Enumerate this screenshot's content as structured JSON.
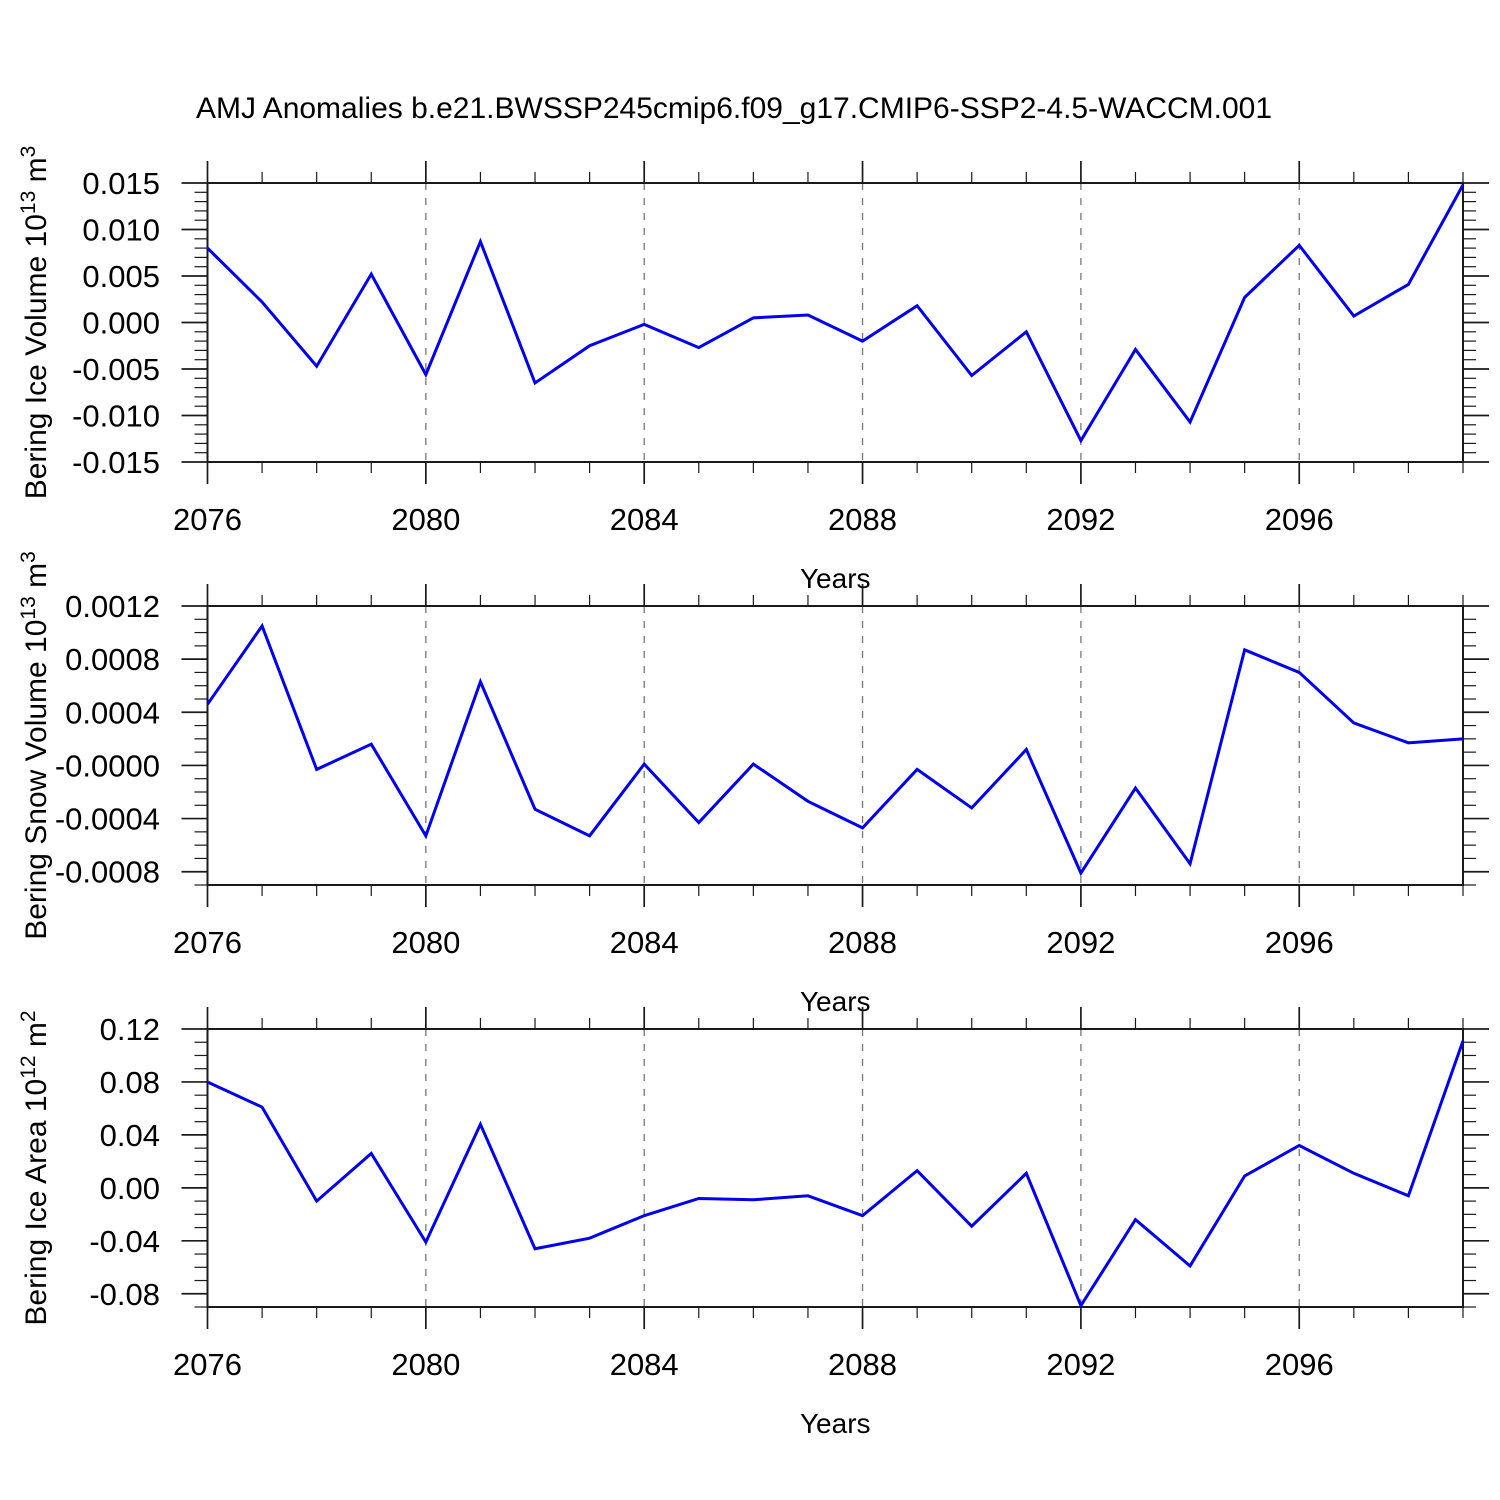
{
  "title": "AMJ Anomalies b.e21.BWSSP245cmip6.f09_g17.CMIP6-SSP2-4.5-WACCM.001",
  "styles": {
    "line_color": "#0000ee",
    "grid_color": "#777777",
    "axis_color": "#1a1a1a",
    "text_color": "#000000",
    "background": "#ffffff"
  },
  "chart_data": [
    {
      "type": "line",
      "id": "ice-volume",
      "ylabel_parts": [
        {
          "t": "Bering Ice Volume 10"
        },
        {
          "t": "13",
          "sup": true
        },
        {
          "t": " m"
        },
        {
          "t": "3",
          "sup": true
        }
      ],
      "xlabel": "Years",
      "x": [
        2076,
        2077,
        2078,
        2079,
        2080,
        2081,
        2082,
        2083,
        2084,
        2085,
        2086,
        2087,
        2088,
        2089,
        2090,
        2091,
        2092,
        2093,
        2094,
        2095,
        2096,
        2097,
        2098,
        2099
      ],
      "values": [
        0.008,
        0.0022,
        -0.0047,
        0.0052,
        -0.0056,
        0.0087,
        -0.0065,
        -0.0025,
        -0.0002,
        -0.0027,
        0.0005,
        0.0008,
        -0.002,
        0.0018,
        -0.0057,
        -0.001,
        -0.0127,
        -0.0029,
        -0.0107,
        0.0027,
        0.0083,
        0.0007,
        0.0041,
        0.0148
      ],
      "ylim": [
        -0.015,
        0.015
      ],
      "ytick_values": [
        0.015,
        0.01,
        0.005,
        0.0,
        -0.005,
        -0.01,
        -0.015
      ],
      "ytick_labels": [
        "0.015",
        "0.010",
        "0.005",
        "0.000",
        "-0.005",
        "-0.010",
        "-0.015"
      ],
      "yminor_step": 0.001,
      "xticks": [
        2076,
        2080,
        2084,
        2088,
        2092,
        2096
      ],
      "grid_years": [
        2080,
        2084,
        2088,
        2092,
        2096
      ],
      "grid": "x-dashed",
      "legend": "none"
    },
    {
      "type": "line",
      "id": "snow-volume",
      "ylabel_parts": [
        {
          "t": "Bering Snow Volume 10"
        },
        {
          "t": "13",
          "sup": true
        },
        {
          "t": " m"
        },
        {
          "t": "3",
          "sup": true
        }
      ],
      "xlabel": "Years",
      "x": [
        2076,
        2077,
        2078,
        2079,
        2080,
        2081,
        2082,
        2083,
        2084,
        2085,
        2086,
        2087,
        2088,
        2089,
        2090,
        2091,
        2092,
        2093,
        2094,
        2095,
        2096,
        2097,
        2098,
        2099
      ],
      "values": [
        0.00046,
        0.00105,
        -3e-05,
        0.00016,
        -0.00053,
        0.00063,
        -0.00033,
        -0.00053,
        1e-05,
        -0.00043,
        1e-05,
        -0.00027,
        -0.00047,
        -3e-05,
        -0.00032,
        0.00012,
        -0.00081,
        -0.00017,
        -0.00074,
        0.00087,
        0.0007,
        0.00032,
        0.00017,
        0.0002
      ],
      "ylim": [
        -0.0009,
        0.0012
      ],
      "ytick_values": [
        0.0012,
        0.0008,
        0.0004,
        0.0,
        -0.0004,
        -0.0008
      ],
      "ytick_labels": [
        "0.0012",
        "0.0008",
        "0.0004",
        "-0.0000",
        "-0.0004",
        "-0.0008"
      ],
      "yminor_step": 0.0001,
      "xticks": [
        2076,
        2080,
        2084,
        2088,
        2092,
        2096
      ],
      "grid_years": [
        2080,
        2084,
        2088,
        2092,
        2096
      ],
      "grid": "x-dashed",
      "legend": "none"
    },
    {
      "type": "line",
      "id": "ice-area",
      "ylabel_parts": [
        {
          "t": "Bering Ice Area 10"
        },
        {
          "t": "12",
          "sup": true
        },
        {
          "t": " m"
        },
        {
          "t": "2",
          "sup": true
        }
      ],
      "xlabel": "Years",
      "x": [
        2076,
        2077,
        2078,
        2079,
        2080,
        2081,
        2082,
        2083,
        2084,
        2085,
        2086,
        2087,
        2088,
        2089,
        2090,
        2091,
        2092,
        2093,
        2094,
        2095,
        2096,
        2097,
        2098,
        2099
      ],
      "values": [
        0.08,
        0.061,
        -0.01,
        0.026,
        -0.041,
        0.048,
        -0.046,
        -0.038,
        -0.021,
        -0.008,
        -0.009,
        -0.006,
        -0.021,
        0.013,
        -0.029,
        0.011,
        -0.089,
        -0.024,
        -0.059,
        0.009,
        0.032,
        0.011,
        -0.006,
        0.111
      ],
      "ylim": [
        -0.09,
        0.12
      ],
      "ytick_values": [
        0.12,
        0.08,
        0.04,
        0.0,
        -0.04,
        -0.08
      ],
      "ytick_labels": [
        "0.12",
        "0.08",
        "0.04",
        "0.00",
        "-0.04",
        "-0.08"
      ],
      "yminor_step": 0.01,
      "xticks": [
        2076,
        2080,
        2084,
        2088,
        2092,
        2096
      ],
      "grid_years": [
        2080,
        2084,
        2088,
        2092,
        2096
      ],
      "grid": "x-dashed",
      "legend": "none"
    }
  ]
}
